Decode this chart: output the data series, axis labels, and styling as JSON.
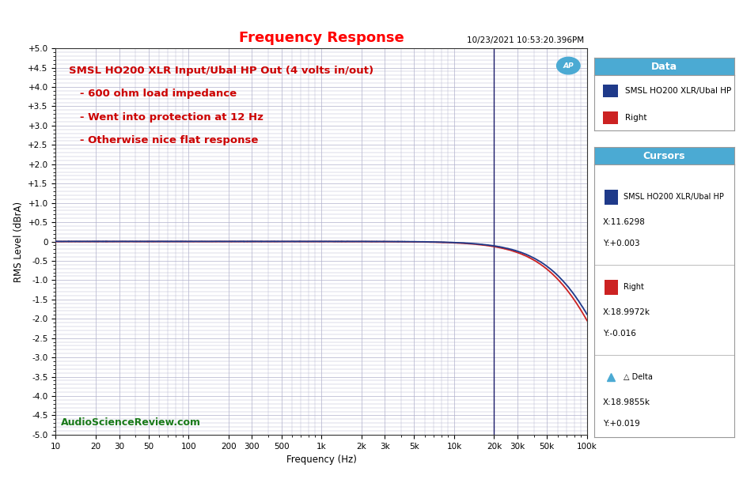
{
  "title": "Frequency Response",
  "title_color": "#FF0000",
  "timestamp": "10/23/2021 10:53:20.396PM",
  "ylabel": "RMS Level (dBrA)",
  "xlabel": "Frequency (Hz)",
  "xlim_log": [
    10,
    100000
  ],
  "ylim": [
    -5.0,
    5.0
  ],
  "yticks": [
    -5.0,
    -4.5,
    -4.0,
    -3.5,
    -3.0,
    -2.5,
    -2.0,
    -1.5,
    -1.0,
    -0.5,
    0.0,
    0.5,
    1.0,
    1.5,
    2.0,
    2.5,
    3.0,
    3.5,
    4.0,
    4.5,
    5.0
  ],
  "ytick_labels": [
    "-5.0",
    "-4.5",
    "-4.0",
    "-3.5",
    "-3.0",
    "-2.5",
    "-2.0",
    "-1.5",
    "-1.0",
    "-0.5",
    "0",
    "+0.5",
    "+1.0",
    "+1.5",
    "+2.0",
    "+2.5",
    "+3.0",
    "+3.5",
    "+4.0",
    "+4.5",
    "+5.0"
  ],
  "xtick_positions": [
    10,
    20,
    30,
    50,
    100,
    200,
    300,
    500,
    1000,
    2000,
    3000,
    5000,
    10000,
    20000,
    30000,
    50000,
    100000
  ],
  "xtick_labels": [
    "10",
    "20",
    "30",
    "50",
    "100",
    "200",
    "300",
    "500",
    "1k",
    "2k",
    "3k",
    "5k",
    "10k",
    "20k",
    "30k",
    "50k",
    "100k"
  ],
  "line1_color": "#1F3A8A",
  "line2_color": "#CC2222",
  "annotation_line1": "SMSL HO200 XLR Input/Ubal HP Out (4 volts in/out)",
  "annotation_line2": "   - 600 ohm load impedance",
  "annotation_line3": "   - Went into protection at 12 Hz",
  "annotation_line4": "   - Otherwise nice flat response",
  "annotation_color": "#CC0000",
  "watermark": "AudioScienceReview.com",
  "watermark_color": "#1A7A1A",
  "cursor_vline_freq": 20000,
  "cursor_vline_color": "#1A1A6A",
  "bg_color": "#FFFFFF",
  "plot_bg_color": "#FFFFFF",
  "grid_color": "#B0B0CC",
  "legend_title": "Data",
  "legend_title_bg": "#4BAAD3",
  "legend_label1": "SMSL HO200 XLR/Ubal HP",
  "legend_label2": "Right",
  "cursors_title": "Cursors",
  "cursor1_label": "SMSL HO200 XLR/Ubal HP",
  "cursor1_x": "X:11.6298",
  "cursor1_y": "Y:+0.003",
  "cursor2_label": "Right",
  "cursor2_x": "X:18.9972k",
  "cursor2_y": "Y:-0.016",
  "cursor3_label": "△ Delta",
  "cursor3_x": "X:18.9855k",
  "cursor3_y": "Y:+0.019",
  "ap_logo_color": "#4BAAD3",
  "panel_border_color": "#999999"
}
